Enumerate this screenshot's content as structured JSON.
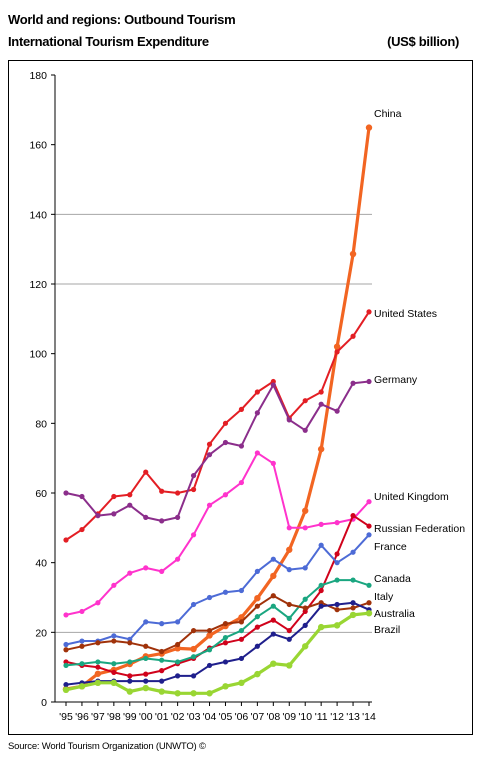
{
  "header": {
    "title": "World and regions: Outbound Tourism",
    "subtitle": "International Tourism Expenditure",
    "unit": "(US$ billion)"
  },
  "footer": {
    "source": "Source: World Tourism Organization (UNWTO) ©"
  },
  "chart_data": {
    "type": "line",
    "title": "International Tourism Expenditure",
    "ylabel": "(US$ billion)",
    "ylim": [
      0,
      180
    ],
    "yticks": [
      0,
      20,
      40,
      60,
      80,
      100,
      120,
      140,
      160,
      180
    ],
    "grid": "horizontal at 20, 140, 120",
    "categories": [
      "'95",
      "'96",
      "'97",
      "'98",
      "'99",
      "'00",
      "'01",
      "'02",
      "'03",
      "'04",
      "'05",
      "'06",
      "'07",
      "'08",
      "'09",
      "'10",
      "'11",
      "'12",
      "'13",
      "'14"
    ],
    "series": [
      {
        "name": "China",
        "color": "#f26522",
        "width": 3.2,
        "values": [
          3.7,
          4.5,
          8.1,
          9.2,
          10.9,
          13.1,
          13.9,
          15.4,
          15.2,
          19.1,
          21.8,
          24.3,
          29.8,
          36.2,
          43.7,
          54.9,
          72.6,
          102.0,
          128.6,
          164.9
        ]
      },
      {
        "name": "United States",
        "color": "#e31e24",
        "width": 2,
        "values": [
          46.5,
          49.5,
          54.0,
          59.0,
          59.5,
          66.0,
          60.5,
          60.0,
          61.0,
          74.0,
          80.0,
          84.0,
          89.0,
          92.0,
          81.5,
          86.5,
          89.0,
          100.5,
          105.0,
          112.0
        ]
      },
      {
        "name": "Germany",
        "color": "#8b2e8b",
        "width": 2,
        "values": [
          60.0,
          59.0,
          53.5,
          54.0,
          56.5,
          53.0,
          52.0,
          53.0,
          65.0,
          71.0,
          74.5,
          73.5,
          83.0,
          91.0,
          81.0,
          78.0,
          85.5,
          83.5,
          91.5,
          92.0
        ]
      },
      {
        "name": "United Kingdom",
        "color": "#ff33cc",
        "width": 2,
        "values": [
          25.0,
          26.0,
          28.5,
          33.5,
          37.0,
          38.5,
          37.5,
          41.0,
          48.0,
          56.5,
          59.5,
          63.0,
          71.5,
          68.5,
          50.0,
          50.0,
          51.0,
          51.5,
          52.5,
          57.5
        ]
      },
      {
        "name": "Russian Federation",
        "color": "#d0021b",
        "width": 2,
        "values": [
          11.5,
          10.5,
          10.0,
          8.5,
          7.5,
          8.0,
          9.0,
          11.0,
          12.5,
          15.5,
          17.0,
          18.0,
          21.5,
          23.5,
          20.5,
          26.0,
          32.0,
          42.5,
          53.5,
          50.5
        ]
      },
      {
        "name": "France",
        "color": "#4d6bd6",
        "width": 2,
        "values": [
          16.5,
          17.5,
          17.5,
          19.0,
          18.0,
          23.0,
          22.5,
          23.0,
          28.0,
          30.0,
          31.5,
          32.0,
          37.5,
          41.0,
          38.0,
          38.5,
          45.0,
          40.0,
          43.0,
          48.0
        ]
      },
      {
        "name": "Canada",
        "color": "#1aa680",
        "width": 2,
        "values": [
          10.5,
          11.0,
          11.5,
          11.0,
          11.5,
          12.5,
          12.0,
          11.5,
          13.0,
          15.0,
          18.5,
          20.5,
          24.5,
          27.5,
          24.0,
          29.5,
          33.5,
          35.0,
          35.0,
          33.5
        ]
      },
      {
        "name": "Italy",
        "color": "#a0320a",
        "width": 2,
        "values": [
          15.0,
          16.0,
          17.0,
          17.5,
          17.0,
          16.0,
          14.5,
          16.5,
          20.5,
          20.5,
          22.5,
          23.0,
          27.5,
          30.5,
          28.0,
          27.0,
          28.5,
          26.5,
          27.0,
          28.5
        ]
      },
      {
        "name": "Australia",
        "color": "#1f1f8c",
        "width": 2,
        "values": [
          5.0,
          5.5,
          6.0,
          6.0,
          6.0,
          6.0,
          6.0,
          7.5,
          7.5,
          10.5,
          11.5,
          12.5,
          16.0,
          19.5,
          18.0,
          22.0,
          27.5,
          28.0,
          28.5,
          26.5
        ]
      },
      {
        "name": "Brazil",
        "color": "#99d633",
        "width": 3.2,
        "values": [
          3.5,
          4.5,
          5.5,
          5.5,
          3.0,
          4.0,
          3.0,
          2.5,
          2.5,
          2.5,
          4.5,
          5.5,
          8.0,
          11.0,
          10.5,
          16.0,
          21.5,
          22.0,
          25.0,
          25.5
        ]
      }
    ],
    "legend_labels": [
      "China",
      "United States",
      "Germany",
      "United Kingdom",
      "Russian Federation",
      "France",
      "Canada",
      "Italy",
      "Australia",
      "Brazil"
    ],
    "legend": "labels at right end of lines"
  }
}
